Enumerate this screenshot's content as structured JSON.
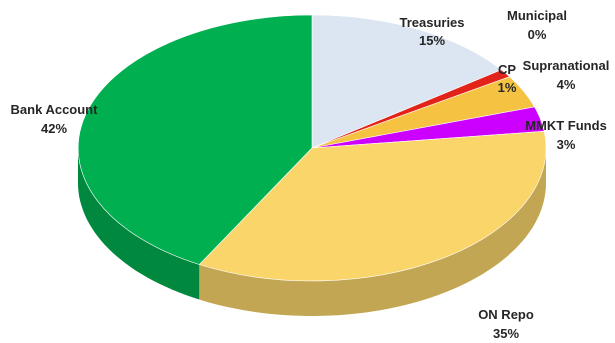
{
  "chart_data": {
    "type": "pie",
    "style": "3d",
    "title": "",
    "start_angle_deg": 90,
    "direction": "clockwise",
    "slices": [
      {
        "name": "Treasuries",
        "value": 15,
        "label": "15%",
        "color": "#dbe6f2"
      },
      {
        "name": "Municipal",
        "value": 0,
        "label": "0%",
        "color": "#9bbb59"
      },
      {
        "name": "CP",
        "value": 1,
        "label": "1%",
        "color": "#e2231a"
      },
      {
        "name": "Supranational",
        "value": 4,
        "label": "4%",
        "color": "#f5c242"
      },
      {
        "name": "MMKT Funds",
        "value": 3,
        "label": "3%",
        "color": "#cc00ff"
      },
      {
        "name": "ON Repo",
        "value": 35,
        "label": "35%",
        "color": "#fad56a"
      },
      {
        "name": "Bank Account",
        "value": 42,
        "label": "42%",
        "color": "#00b050"
      }
    ]
  }
}
